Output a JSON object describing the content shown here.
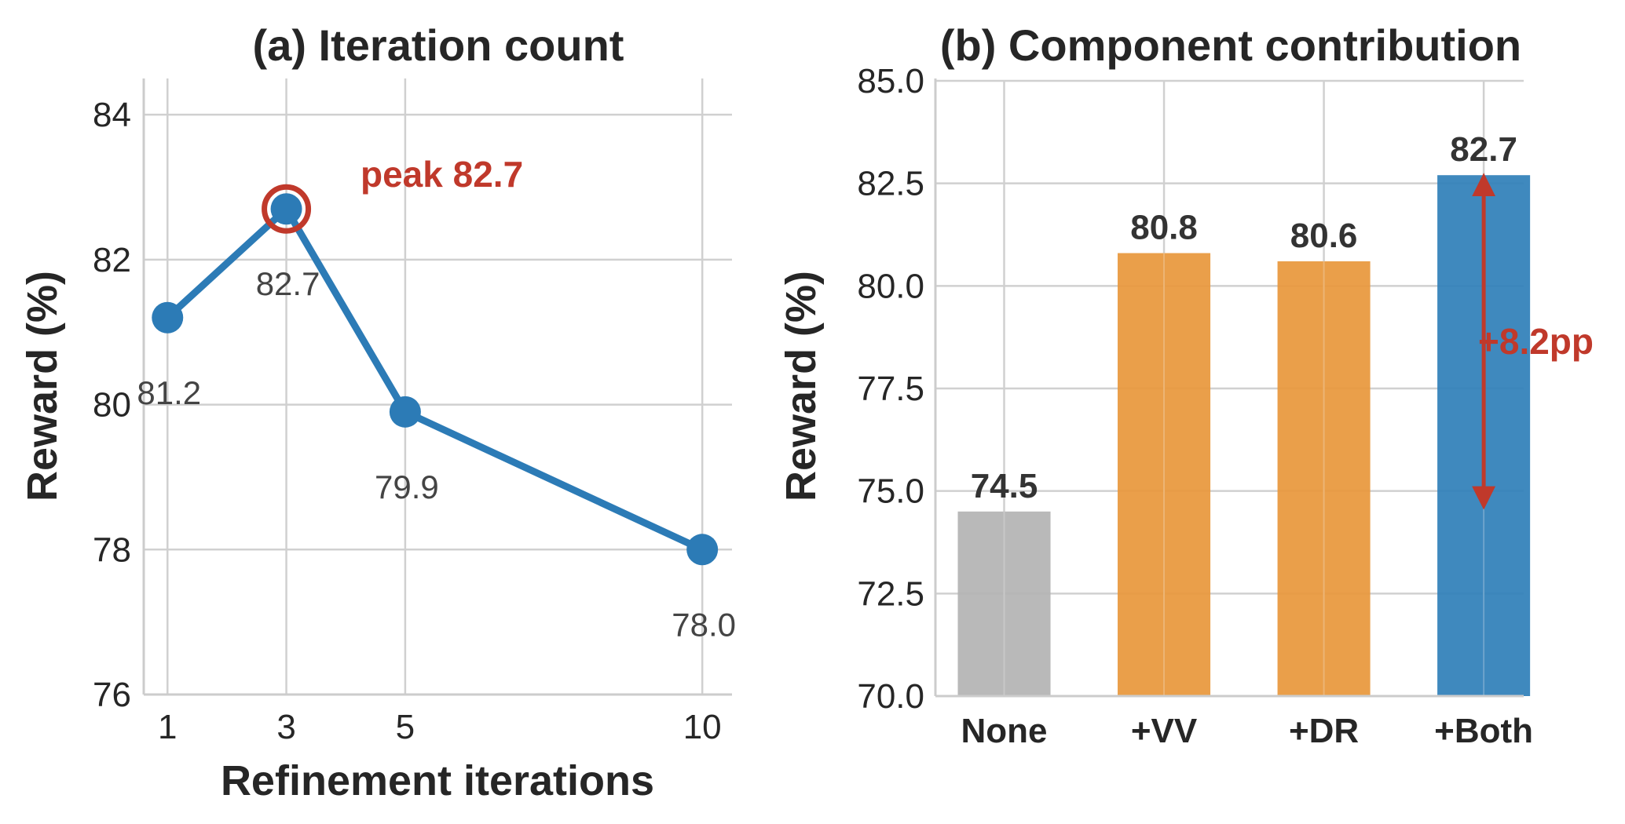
{
  "colors": {
    "line": "#2c7bb6",
    "highlight": "#c0392b",
    "bar_none": "#b3b3b3",
    "bar_single": "#e8973b",
    "bar_both": "#2f7fb8",
    "grid": "#d0d0d0"
  },
  "chart_data": [
    {
      "type": "line",
      "title": "(a) Iteration count",
      "xlabel": "Refinement iterations",
      "ylabel": "Reward (%)",
      "x": [
        1,
        3,
        5,
        10
      ],
      "xticks": [
        "1",
        "3",
        "5",
        "10"
      ],
      "xlim": [
        0.6,
        10.5
      ],
      "ylim": [
        76,
        84.5
      ],
      "yticks": [
        "76",
        "78",
        "80",
        "82",
        "84"
      ],
      "grid": true,
      "series": [
        {
          "values": [
            81.2,
            82.7,
            79.9,
            78.0
          ]
        }
      ],
      "point_labels": [
        "81.2",
        "82.7",
        "79.9",
        "78.0"
      ],
      "highlight": {
        "x": 3,
        "y": 82.7
      },
      "annotation": "peak 82.7"
    },
    {
      "type": "bar",
      "title": "(b) Component contribution",
      "xlabel": "",
      "ylabel": "Reward (%)",
      "categories": [
        "None",
        "+VV",
        "+DR",
        "+Both"
      ],
      "values": [
        74.5,
        80.8,
        80.6,
        82.7
      ],
      "value_labels": [
        "74.5",
        "80.8",
        "80.6",
        "82.7"
      ],
      "ylim": [
        70,
        85
      ],
      "yticks": [
        "70.0",
        "72.5",
        "75.0",
        "77.5",
        "80.0",
        "82.5",
        "85.0"
      ],
      "grid": true,
      "annotation": "+8.2pp",
      "arrow_range": [
        74.6,
        82.7
      ]
    }
  ]
}
